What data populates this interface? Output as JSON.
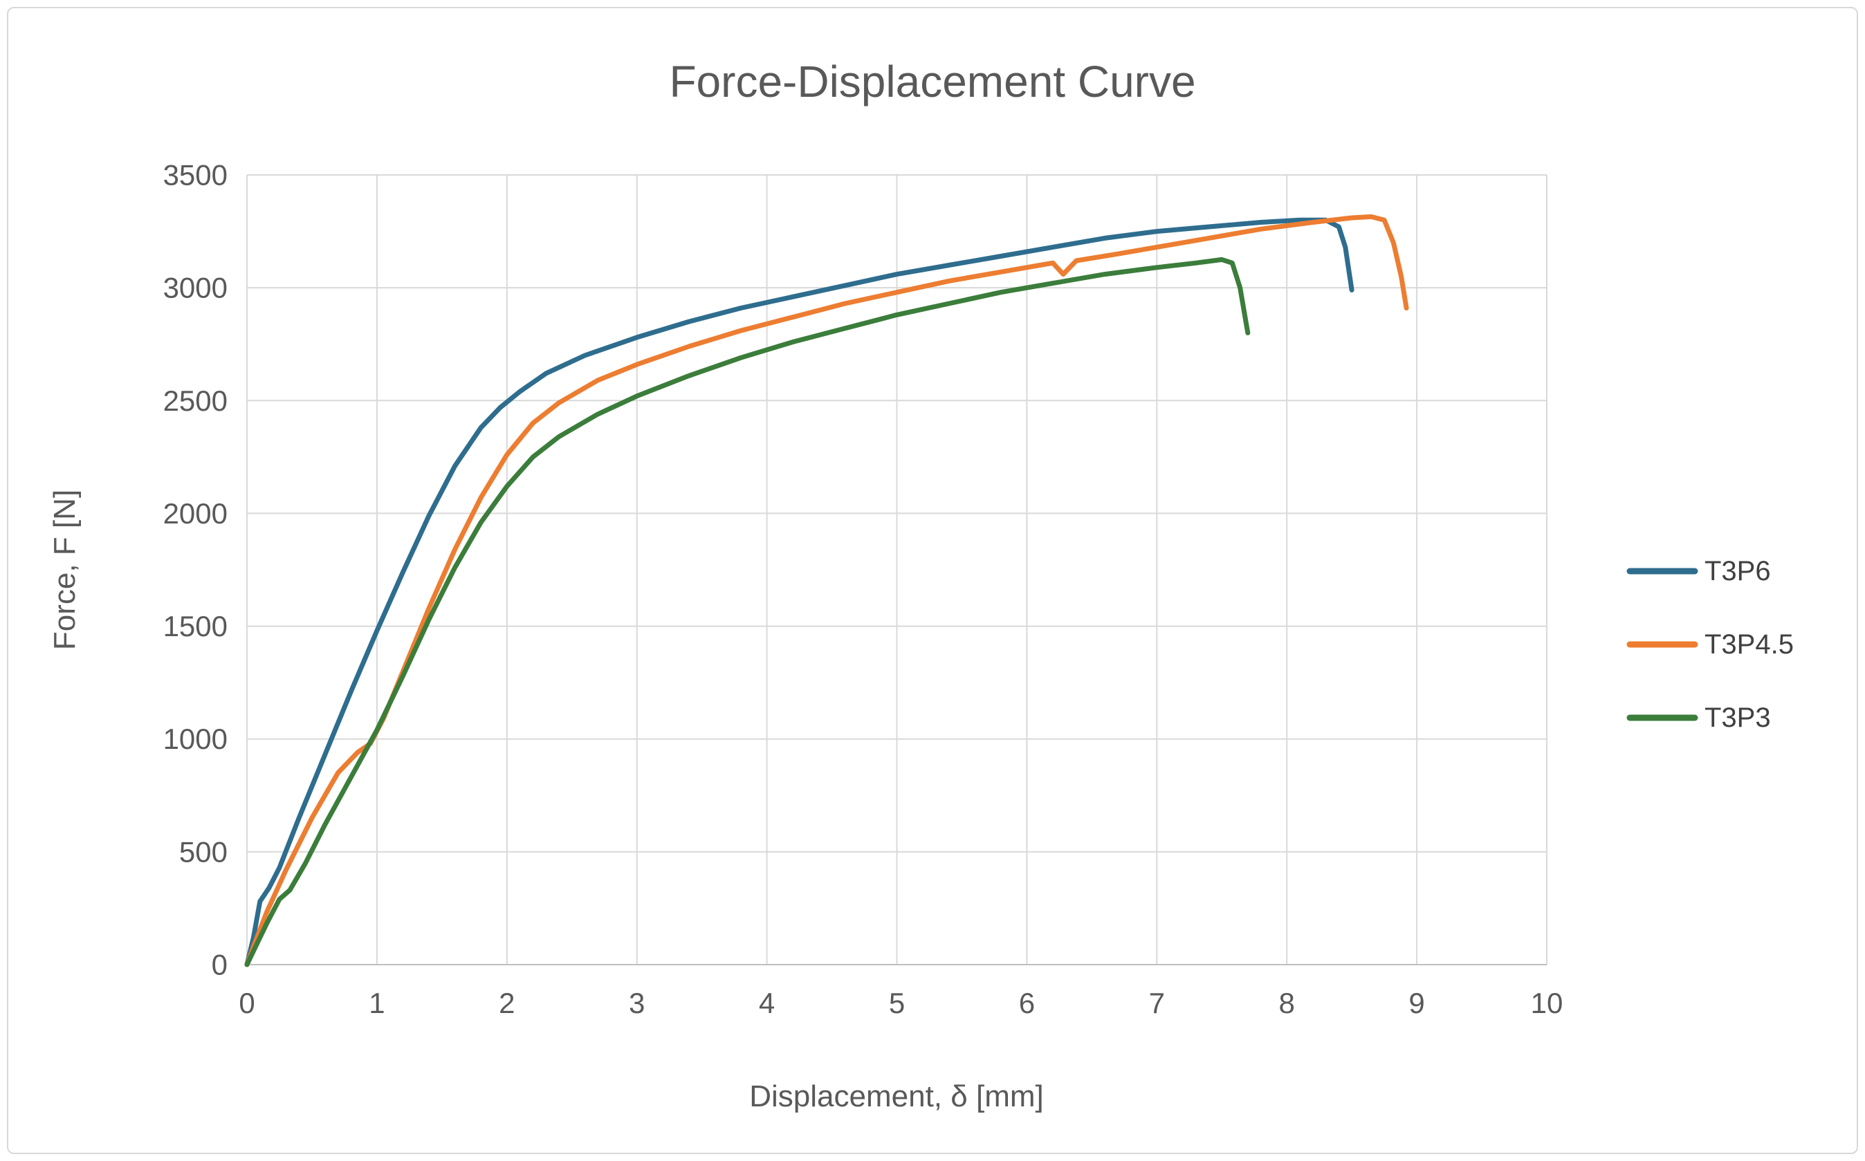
{
  "chart_data": {
    "type": "line",
    "title": "Force-Displacement Curve",
    "xlabel": "Displacement, δ [mm]",
    "ylabel": "Force, F [N]",
    "xlim": [
      0,
      10
    ],
    "ylim": [
      0,
      3500
    ],
    "x_ticks": [
      0,
      1,
      2,
      3,
      4,
      5,
      6,
      7,
      8,
      9,
      10
    ],
    "y_ticks": [
      0,
      500,
      1000,
      1500,
      2000,
      2500,
      3000,
      3500
    ],
    "grid": true,
    "legend_position": "right",
    "colors": {
      "grid": "#d9d9d9",
      "axis": "#bfbfbf",
      "text": "#595959"
    },
    "series": [
      {
        "name": "T3P6",
        "color": "#2e6d8e",
        "points": [
          [
            0,
            0
          ],
          [
            0.05,
            120
          ],
          [
            0.1,
            280
          ],
          [
            0.17,
            340
          ],
          [
            0.25,
            430
          ],
          [
            0.4,
            650
          ],
          [
            0.6,
            930
          ],
          [
            0.8,
            1210
          ],
          [
            1.0,
            1480
          ],
          [
            1.2,
            1740
          ],
          [
            1.4,
            1990
          ],
          [
            1.6,
            2210
          ],
          [
            1.8,
            2380
          ],
          [
            1.95,
            2470
          ],
          [
            2.1,
            2540
          ],
          [
            2.3,
            2620
          ],
          [
            2.6,
            2700
          ],
          [
            3.0,
            2780
          ],
          [
            3.4,
            2850
          ],
          [
            3.8,
            2910
          ],
          [
            4.2,
            2960
          ],
          [
            4.6,
            3010
          ],
          [
            5.0,
            3060
          ],
          [
            5.4,
            3100
          ],
          [
            5.8,
            3140
          ],
          [
            6.2,
            3180
          ],
          [
            6.6,
            3220
          ],
          [
            7.0,
            3250
          ],
          [
            7.4,
            3270
          ],
          [
            7.8,
            3290
          ],
          [
            8.1,
            3300
          ],
          [
            8.3,
            3300
          ],
          [
            8.4,
            3270
          ],
          [
            8.45,
            3180
          ],
          [
            8.5,
            2990
          ]
        ]
      },
      {
        "name": "T3P4.5",
        "color": "#ed7d31",
        "points": [
          [
            0,
            0
          ],
          [
            0.05,
            80
          ],
          [
            0.15,
            230
          ],
          [
            0.3,
            420
          ],
          [
            0.5,
            650
          ],
          [
            0.7,
            850
          ],
          [
            0.85,
            940
          ],
          [
            0.95,
            980
          ],
          [
            1.05,
            1090
          ],
          [
            1.2,
            1300
          ],
          [
            1.4,
            1580
          ],
          [
            1.6,
            1840
          ],
          [
            1.8,
            2070
          ],
          [
            2.0,
            2260
          ],
          [
            2.2,
            2400
          ],
          [
            2.4,
            2490
          ],
          [
            2.7,
            2590
          ],
          [
            3.0,
            2660
          ],
          [
            3.4,
            2740
          ],
          [
            3.8,
            2810
          ],
          [
            4.2,
            2870
          ],
          [
            4.6,
            2930
          ],
          [
            5.0,
            2980
          ],
          [
            5.4,
            3030
          ],
          [
            5.8,
            3070
          ],
          [
            6.1,
            3100
          ],
          [
            6.2,
            3110
          ],
          [
            6.28,
            3060
          ],
          [
            6.38,
            3120
          ],
          [
            6.7,
            3150
          ],
          [
            7.0,
            3180
          ],
          [
            7.4,
            3220
          ],
          [
            7.8,
            3260
          ],
          [
            8.2,
            3290
          ],
          [
            8.5,
            3310
          ],
          [
            8.65,
            3315
          ],
          [
            8.75,
            3300
          ],
          [
            8.82,
            3200
          ],
          [
            8.88,
            3050
          ],
          [
            8.92,
            2910
          ]
        ]
      },
      {
        "name": "T3P3",
        "color": "#3b7d3b",
        "points": [
          [
            0,
            0
          ],
          [
            0.05,
            60
          ],
          [
            0.15,
            180
          ],
          [
            0.25,
            290
          ],
          [
            0.33,
            330
          ],
          [
            0.45,
            450
          ],
          [
            0.6,
            620
          ],
          [
            0.8,
            830
          ],
          [
            1.0,
            1040
          ],
          [
            1.2,
            1280
          ],
          [
            1.4,
            1530
          ],
          [
            1.6,
            1760
          ],
          [
            1.8,
            1960
          ],
          [
            2.0,
            2120
          ],
          [
            2.2,
            2250
          ],
          [
            2.4,
            2340
          ],
          [
            2.7,
            2440
          ],
          [
            3.0,
            2520
          ],
          [
            3.4,
            2610
          ],
          [
            3.8,
            2690
          ],
          [
            4.2,
            2760
          ],
          [
            4.6,
            2820
          ],
          [
            5.0,
            2880
          ],
          [
            5.4,
            2930
          ],
          [
            5.8,
            2980
          ],
          [
            6.2,
            3020
          ],
          [
            6.6,
            3060
          ],
          [
            7.0,
            3090
          ],
          [
            7.3,
            3110
          ],
          [
            7.5,
            3125
          ],
          [
            7.58,
            3110
          ],
          [
            7.64,
            3000
          ],
          [
            7.7,
            2800
          ]
        ]
      }
    ]
  }
}
